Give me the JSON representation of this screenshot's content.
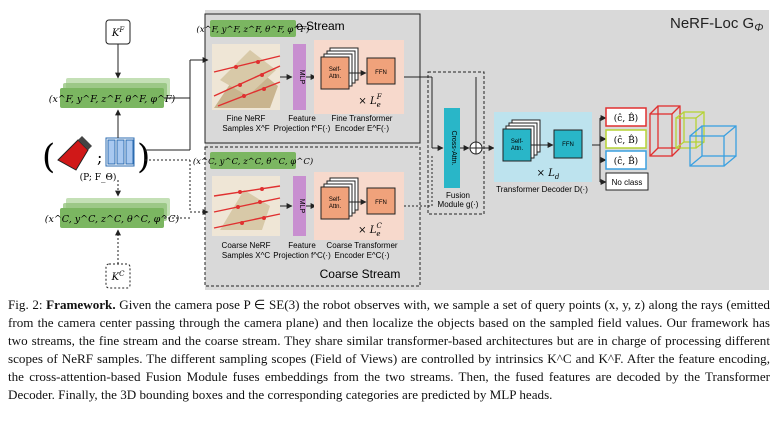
{
  "figure": {
    "title": "NeRF-Loc G",
    "title_sub": "Φ",
    "fine_stream_label": "Fine Stream",
    "coarse_stream_label": "Coarse Stream",
    "k_fine": "K^F",
    "k_coarse": "K^C",
    "fine_ray_params": "(x^F, y^F, z^F, θ^F, φ^F)",
    "coarse_ray_params": "(x^C, y^C, z^C, θ^C, φ^C)",
    "camera_tuple": "(P; F_Θ)",
    "fine_samples_label": [
      "Fine NeRF",
      "Samples X^F"
    ],
    "coarse_samples_label": [
      "Coarse NeRF",
      "Samples X^C"
    ],
    "fine_projection_label": [
      "Feature",
      "Projection f^F(·)"
    ],
    "coarse_projection_label": [
      "Feature",
      "Projection f^C(·)"
    ],
    "fine_encoder_label": [
      "Fine Transformer",
      "Encoder E^F(·)"
    ],
    "coarse_encoder_label": [
      "Coarse Transformer",
      "Encoder E^C(·)"
    ],
    "mlp_label": "MLP",
    "self_attn_label": [
      "Self-",
      "Attn."
    ],
    "ffn_label": "FFN",
    "times_le_fine": "× L_e^F",
    "times_le_coarse": "× L_e^C",
    "cross_attn_label": "Cross-Attn.",
    "fusion_label": [
      "Fusion",
      "Module g(·)"
    ],
    "decoder_label": "Transformer Decoder D(·)",
    "times_ld": "× L_d",
    "outputs": [
      "(ĉ, B̂)",
      "(ĉ, B̂)",
      "(ĉ, B̂)"
    ],
    "no_class": "No class",
    "colors": {
      "stream_bg": "#d9d9d9",
      "green": "#7bb661",
      "encoder_bg": "#f7d9cc",
      "orange": "#f0a27b",
      "mlp_purple": "#c88fd0",
      "cyan": "#29b6c8",
      "decoder_bg": "#bde3ee",
      "red": "#e03030",
      "yellow_green": "#b5d334",
      "blue": "#3aa0e0"
    }
  },
  "caption": {
    "label": "Fig. 2:",
    "bold": "Framework.",
    "text": "Given the camera pose P ∈ SE(3) the robot observes with, we sample a set of query points (x, y, z) along the rays (emitted from the camera center passing through the camera plane) and then localize the objects based on the sampled field values. Our framework has two streams, the fine stream and the coarse stream. They share similar transformer-based architectures but are in charge of processing different scopes of NeRF samples. The different sampling scopes (Field of Views) are controlled by intrinsics K^C and K^F. After the feature encoding, the cross-attention-based Fusion Module fuses embeddings from the two streams. Then, the fused features are decoded by the Transformer Decoder. Finally, the 3D bounding boxes and the corresponding categories are predicted by MLP heads."
  }
}
